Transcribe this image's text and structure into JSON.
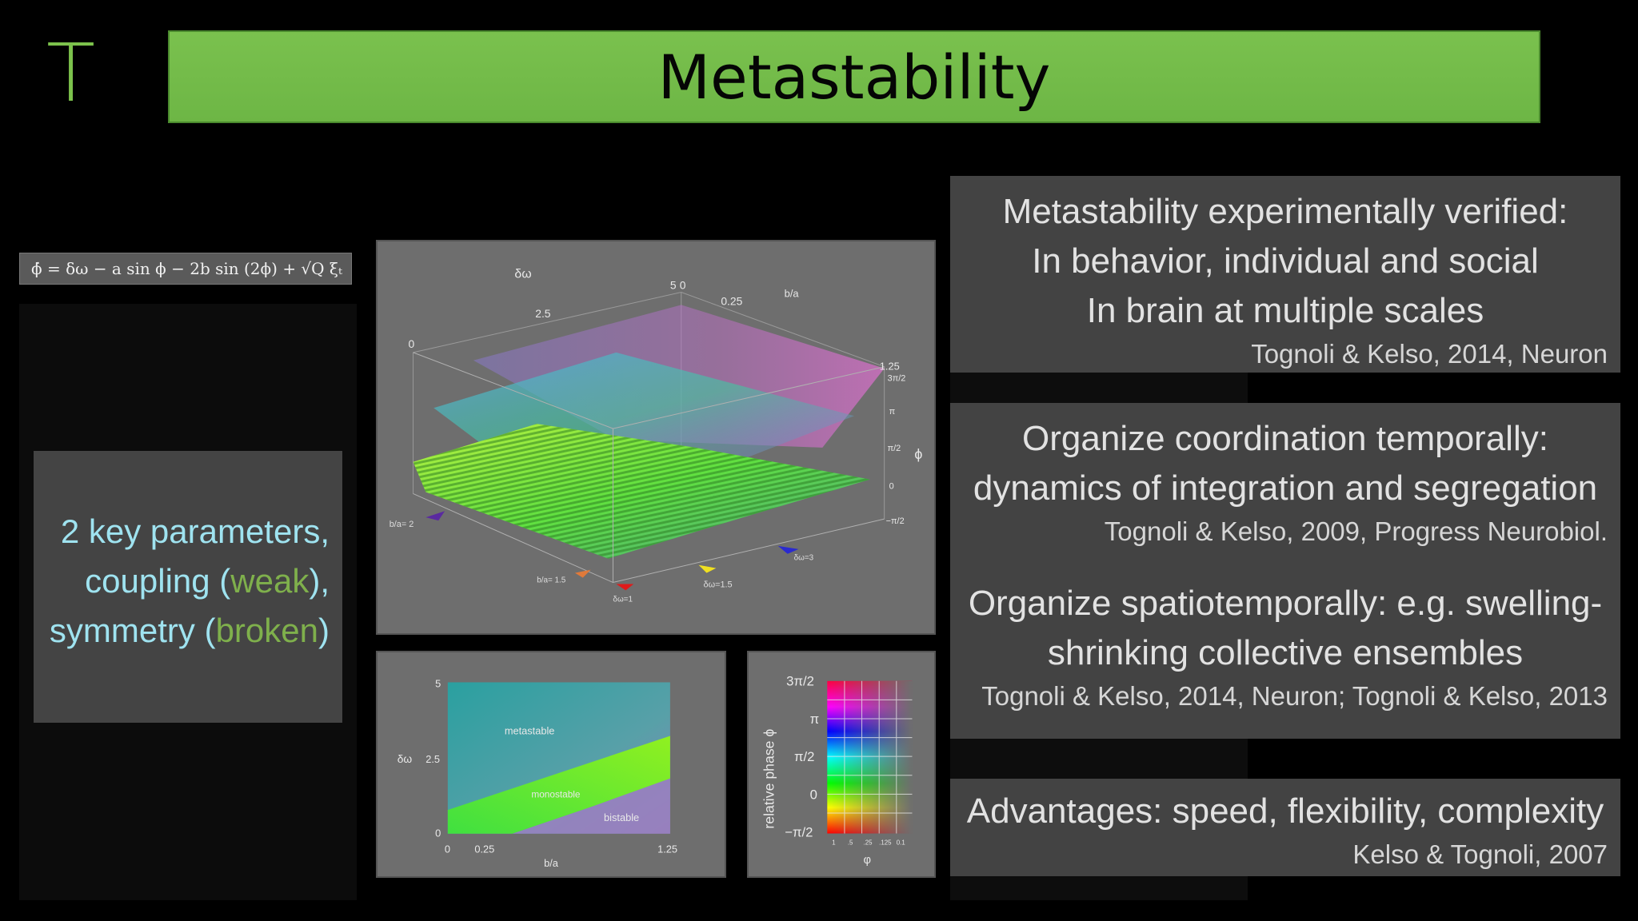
{
  "logo": {
    "letter": "T"
  },
  "title": "Metastability",
  "equation": "ϕ̇ = δω − a sin ϕ − 2b sin (2ϕ) + √Q ξₜ",
  "params": {
    "line1": "2 key parameters,",
    "line2_prefix": "coupling (",
    "line2_green": "weak",
    "line2_suffix": "),",
    "line3_prefix": "symmetry (",
    "line3_green": "broken",
    "line3_suffix": ")"
  },
  "plot3d": {
    "labels": {
      "d_omega": "δω",
      "t25": "2.5",
      "t5": "5",
      "t0a": "0",
      "t0b": "0",
      "t025": "0.25",
      "ba": "b/a",
      "t125": "1.25",
      "phi": "ϕ",
      "z3pi2": "3π/2",
      "zpi": "π",
      "zpi2": "π/2",
      "z0": "0",
      "zmpi2": "−π/2",
      "m_ba2": "b/a= 2",
      "m_ba15": "b/a= 1.5",
      "m_dw": "δω=1",
      "m_dw15": "δω=1.5",
      "m_dw3": "δω=3"
    },
    "marker_colors": [
      "#5a2aa0",
      "#e07a3a",
      "#e01a1a",
      "#f0e020",
      "#2a2ad0"
    ]
  },
  "plot2d": {
    "ylabel": "δω",
    "xlabel": "b/a",
    "yticks": [
      "5",
      "2.5",
      "0"
    ],
    "xticks": [
      "0",
      "0.25",
      "1.25"
    ],
    "regions": [
      "metastable",
      "monostable",
      "bistable"
    ]
  },
  "colorbar": {
    "ylabel": "relative phase ϕ",
    "xlabel": "φ",
    "ticks": [
      "3π/2",
      "π",
      "π/2",
      "0",
      "−π/2"
    ],
    "xticks": [
      "1",
      ".5",
      ".25",
      ".125",
      "0.1"
    ]
  },
  "box1": {
    "lines": [
      "Metastability experimentally verified:",
      "In behavior, individual and social",
      "In brain at multiple scales"
    ],
    "cite": "Tognoli & Kelso, 2014, Neuron"
  },
  "box2": {
    "lines_a": [
      "Organize coordination temporally:",
      "dynamics of integration and segregation"
    ],
    "cite_a": "Tognoli & Kelso, 2009, Progress Neurobiol.",
    "lines_b": [
      "Organize spatiotemporally: e.g. swelling-",
      "shrinking collective ensembles"
    ],
    "cite_b": "Tognoli & Kelso, 2014, Neuron; Tognoli & Kelso, 2013"
  },
  "box3": {
    "line": "Advantages: speed, flexibility, complexity",
    "cite": "Kelso & Tognoli, 2007"
  }
}
